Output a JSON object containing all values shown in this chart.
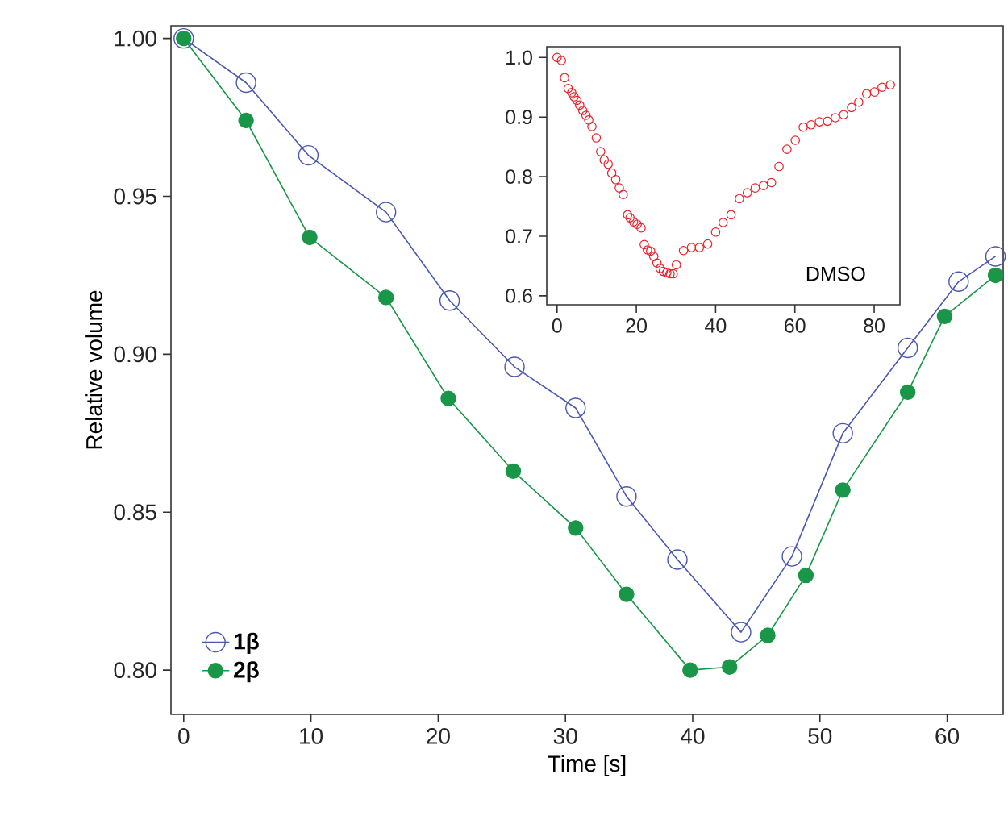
{
  "chart_data": [
    {
      "type": "line",
      "xlabel": "Time [s]",
      "ylabel": "Relative volume",
      "xlim": [
        -1,
        64.4
      ],
      "ylim": [
        0.786,
        1.004
      ],
      "xticks": [
        0,
        10,
        20,
        30,
        40,
        50,
        60
      ],
      "yticks": [
        {
          "value": 0.8,
          "label": "0.80"
        },
        {
          "value": 0.85,
          "label": "0.85"
        },
        {
          "value": 0.9,
          "label": "0.90"
        },
        {
          "value": 0.95,
          "label": "0.95"
        },
        {
          "value": 1.0,
          "label": "1.00"
        }
      ],
      "legend": "bottom left",
      "marker": "circle",
      "line_style": "solid",
      "series": [
        {
          "name": "1β",
          "color": "#4a58b0",
          "x": [
            0,
            4.9,
            9.8,
            15.9,
            20.9,
            26.0,
            30.8,
            34.8,
            38.8,
            43.8,
            47.8,
            51.8,
            56.9,
            60.9,
            63.8
          ],
          "values": [
            1.0,
            0.986,
            0.963,
            0.945,
            0.917,
            0.896,
            0.883,
            0.855,
            0.835,
            0.812,
            0.836,
            0.875,
            0.902,
            0.923,
            0.931
          ]
        },
        {
          "name": "2β",
          "color": "#1a9648",
          "x": [
            0,
            4.9,
            9.9,
            15.9,
            20.8,
            25.9,
            30.8,
            34.8,
            39.8,
            42.9,
            45.9,
            48.9,
            51.8,
            56.9,
            59.8,
            63.8
          ],
          "values": [
            1.0,
            0.974,
            0.937,
            0.918,
            0.886,
            0.863,
            0.845,
            0.824,
            0.8,
            0.801,
            0.811,
            0.83,
            0.857,
            0.888,
            0.912,
            0.925
          ]
        }
      ]
    },
    {
      "type": "scatter",
      "xlim": [
        -2.6,
        86.5
      ],
      "ylim": [
        0.585,
        1.018
      ],
      "xticks": [
        0,
        20,
        40,
        60,
        80
      ],
      "yticks": [
        {
          "value": 0.6,
          "label": "0.6"
        },
        {
          "value": 0.7,
          "label": "0.7"
        },
        {
          "value": 0.8,
          "label": "0.8"
        },
        {
          "value": 0.9,
          "label": "0.9"
        },
        {
          "value": 1.0,
          "label": "1.0"
        }
      ],
      "marker": "circle",
      "annotations": [
        "DMSO"
      ],
      "series": [
        {
          "color": "#e8202a",
          "x": [
            0,
            1.1,
            1.9,
            2.8,
            3.7,
            4.3,
            5.0,
            5.7,
            6.5,
            7.3,
            8.0,
            8.8,
            9.9,
            11.0,
            11.9,
            12.9,
            13.8,
            14.8,
            15.7,
            16.7,
            17.8,
            18.4,
            19.3,
            20.2,
            21.2,
            22.0,
            22.8,
            23.6,
            24.4,
            25.2,
            26.0,
            26.8,
            27.7,
            28.5,
            29.3,
            30.1,
            31.9,
            33.9,
            35.9,
            38.0,
            40.0,
            41.9,
            43.9,
            46.0,
            48.0,
            50.0,
            52.1,
            54.1,
            56.0,
            58.0,
            60.1,
            62.1,
            64.1,
            66.2,
            68.2,
            70.2,
            72.3,
            74.3,
            76.1,
            78.1,
            80.1,
            82.0,
            84.1
          ],
          "values": [
            1.0,
            0.995,
            0.966,
            0.948,
            0.941,
            0.934,
            0.928,
            0.92,
            0.911,
            0.903,
            0.895,
            0.884,
            0.865,
            0.842,
            0.828,
            0.821,
            0.806,
            0.795,
            0.781,
            0.77,
            0.736,
            0.731,
            0.724,
            0.72,
            0.714,
            0.686,
            0.677,
            0.675,
            0.666,
            0.655,
            0.646,
            0.641,
            0.639,
            0.637,
            0.637,
            0.652,
            0.676,
            0.681,
            0.681,
            0.687,
            0.707,
            0.723,
            0.736,
            0.763,
            0.773,
            0.781,
            0.785,
            0.79,
            0.817,
            0.846,
            0.861,
            0.883,
            0.887,
            0.892,
            0.893,
            0.899,
            0.904,
            0.916,
            0.925,
            0.939,
            0.942,
            0.95,
            0.954
          ]
        }
      ]
    }
  ]
}
